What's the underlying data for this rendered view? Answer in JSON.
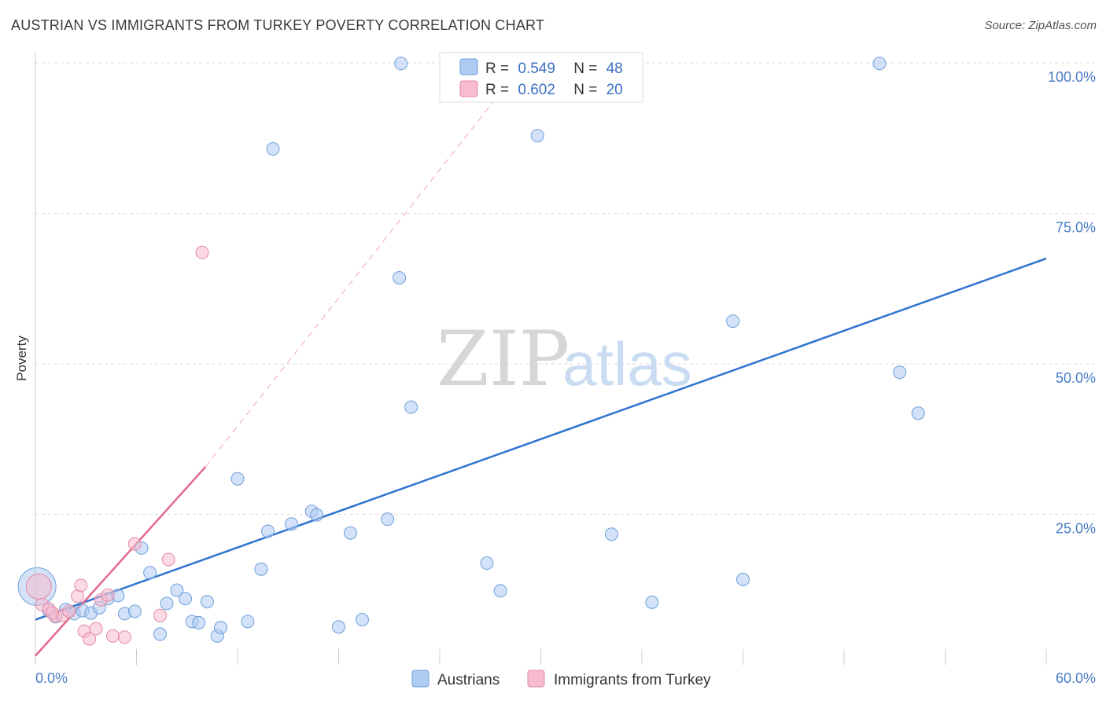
{
  "title": "AUSTRIAN VS IMMIGRANTS FROM TURKEY POVERTY CORRELATION CHART",
  "source": "Source: ZipAtlas.com",
  "watermark": {
    "zip": "ZIP",
    "atlas": "atlas"
  },
  "colors": {
    "blue_fill": "#aecbf2",
    "blue_stroke": "#6f9fd9",
    "blue_line": "#2f73cf",
    "pink_fill": "#f7bccd",
    "pink_stroke": "#e58aa6",
    "pink_line": "#e4688f",
    "grid": "#dddddd",
    "tick_text": "#4a7cc7"
  },
  "legend": {
    "r_label": "R =",
    "n_label": "N =",
    "rows": [
      {
        "r": "0.549",
        "n": "48",
        "series": "Austrians"
      },
      {
        "r": "0.602",
        "n": "20",
        "series": "Immigrants from Turkey"
      }
    ]
  },
  "chart_data": {
    "type": "scatter",
    "title": "AUSTRIAN VS IMMIGRANTS FROM TURKEY POVERTY CORRELATION CHART",
    "xlabel": "",
    "ylabel": "Poverty",
    "xlim": [
      0,
      60
    ],
    "ylim": [
      0,
      100
    ],
    "x_tick_labels": [
      "0.0%",
      "60.0%"
    ],
    "y_ticks": [
      25,
      50,
      75,
      100
    ],
    "y_tick_labels": [
      "25.0%",
      "50.0%",
      "75.0%",
      "100.0%"
    ],
    "grid": true,
    "legend_position": "bottom-center",
    "series": [
      {
        "name": "Austrians",
        "color": "#aecbf2",
        "r": 0.549,
        "n": 48,
        "points": [
          {
            "x": 0.1,
            "y": 13.0,
            "s": 3
          },
          {
            "x": 0.8,
            "y": 9.0
          },
          {
            "x": 1.2,
            "y": 8.0
          },
          {
            "x": 1.8,
            "y": 9.2
          },
          {
            "x": 2.3,
            "y": 8.5
          },
          {
            "x": 2.8,
            "y": 9.0
          },
          {
            "x": 3.3,
            "y": 8.6
          },
          {
            "x": 3.8,
            "y": 9.5
          },
          {
            "x": 4.3,
            "y": 11.0
          },
          {
            "x": 4.9,
            "y": 11.5
          },
          {
            "x": 5.3,
            "y": 8.5
          },
          {
            "x": 5.9,
            "y": 8.9
          },
          {
            "x": 6.3,
            "y": 19.4
          },
          {
            "x": 6.8,
            "y": 15.3
          },
          {
            "x": 7.4,
            "y": 5.1
          },
          {
            "x": 7.8,
            "y": 10.2
          },
          {
            "x": 8.4,
            "y": 12.4
          },
          {
            "x": 8.9,
            "y": 11.0
          },
          {
            "x": 9.3,
            "y": 7.2
          },
          {
            "x": 9.7,
            "y": 7.0
          },
          {
            "x": 10.2,
            "y": 10.5
          },
          {
            "x": 10.8,
            "y": 4.8
          },
          {
            "x": 11.0,
            "y": 6.2
          },
          {
            "x": 12.0,
            "y": 30.9
          },
          {
            "x": 12.6,
            "y": 7.2
          },
          {
            "x": 13.4,
            "y": 15.9
          },
          {
            "x": 13.8,
            "y": 22.2
          },
          {
            "x": 14.1,
            "y": 85.7
          },
          {
            "x": 15.2,
            "y": 23.4
          },
          {
            "x": 16.4,
            "y": 25.5
          },
          {
            "x": 16.7,
            "y": 24.9
          },
          {
            "x": 18.0,
            "y": 6.3
          },
          {
            "x": 18.7,
            "y": 21.9
          },
          {
            "x": 19.4,
            "y": 7.5
          },
          {
            "x": 20.9,
            "y": 24.2
          },
          {
            "x": 21.6,
            "y": 64.3
          },
          {
            "x": 21.7,
            "y": 99.9
          },
          {
            "x": 22.3,
            "y": 42.8
          },
          {
            "x": 26.8,
            "y": 16.9
          },
          {
            "x": 27.6,
            "y": 12.3
          },
          {
            "x": 29.8,
            "y": 87.9
          },
          {
            "x": 34.2,
            "y": 21.7
          },
          {
            "x": 36.6,
            "y": 10.4
          },
          {
            "x": 41.4,
            "y": 57.1
          },
          {
            "x": 42.0,
            "y": 14.2
          },
          {
            "x": 50.1,
            "y": 99.9
          },
          {
            "x": 51.3,
            "y": 48.6
          },
          {
            "x": 52.4,
            "y": 41.8
          }
        ]
      },
      {
        "name": "Immigrants from Turkey",
        "color": "#f7bccd",
        "r": 0.602,
        "n": 20,
        "points": [
          {
            "x": 0.2,
            "y": 13.0,
            "s": 2
          },
          {
            "x": 0.4,
            "y": 10.0
          },
          {
            "x": 0.8,
            "y": 9.3
          },
          {
            "x": 1.2,
            "y": 8.1
          },
          {
            "x": 1.6,
            "y": 8.2
          },
          {
            "x": 2.0,
            "y": 8.9
          },
          {
            "x": 2.5,
            "y": 11.4
          },
          {
            "x": 2.7,
            "y": 13.2
          },
          {
            "x": 2.9,
            "y": 5.6
          },
          {
            "x": 3.2,
            "y": 4.3
          },
          {
            "x": 3.6,
            "y": 6.0
          },
          {
            "x": 3.9,
            "y": 10.8
          },
          {
            "x": 4.3,
            "y": 11.6
          },
          {
            "x": 4.6,
            "y": 4.8
          },
          {
            "x": 5.3,
            "y": 4.6
          },
          {
            "x": 5.9,
            "y": 20.1
          },
          {
            "x": 7.4,
            "y": 8.2
          },
          {
            "x": 7.9,
            "y": 17.5
          },
          {
            "x": 9.9,
            "y": 68.5
          },
          {
            "x": 1.0,
            "y": 8.6
          }
        ]
      }
    ],
    "trend_lines": [
      {
        "series": "Austrians",
        "x": [
          0,
          60
        ],
        "y": [
          7.5,
          67.5
        ],
        "style": "solid"
      },
      {
        "series": "Immigrants from Turkey",
        "x": [
          0,
          10.1
        ],
        "y": [
          1.5,
          32.9
        ],
        "style": "solid"
      },
      {
        "series": "Immigrants from Turkey",
        "x": [
          10.1,
          29.0
        ],
        "y": [
          32.9,
          100.0
        ],
        "style": "dashed"
      }
    ]
  }
}
